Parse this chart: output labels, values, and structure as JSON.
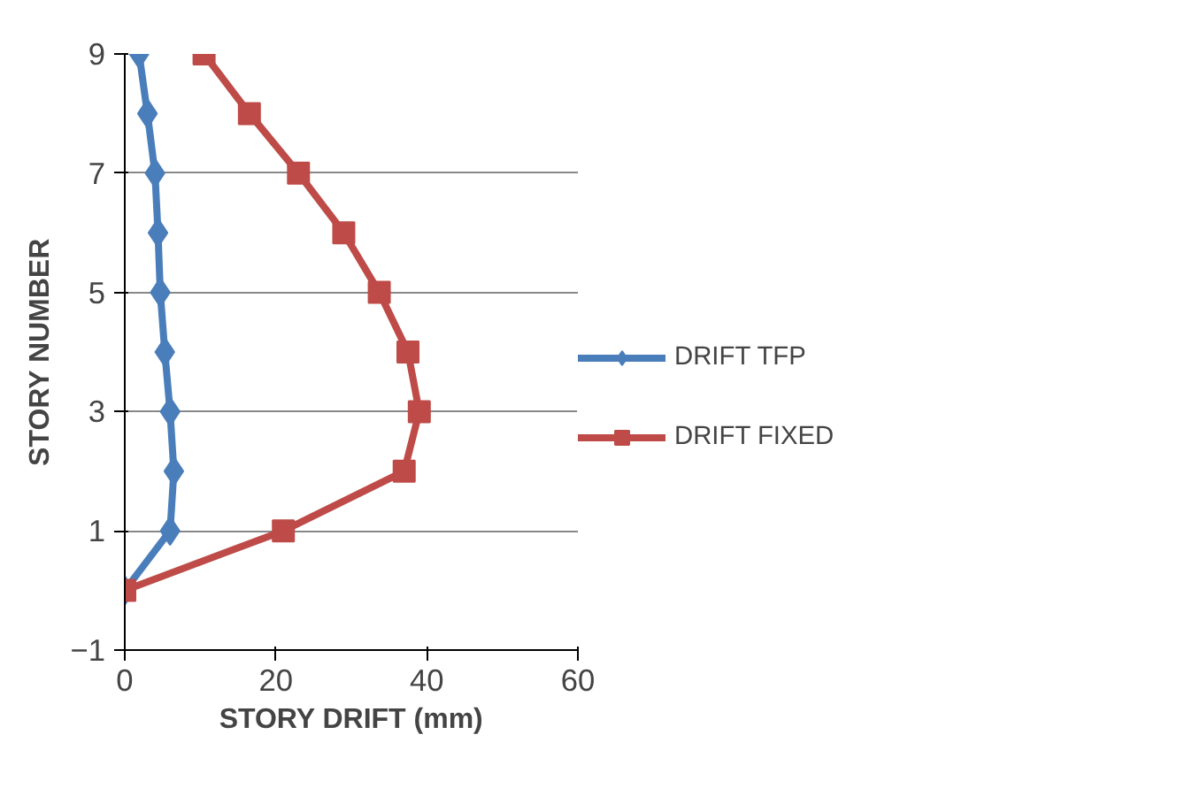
{
  "chart_data": {
    "type": "line",
    "xlabel": "STORY DRIFT (mm)",
    "ylabel": "STORY NUMBER",
    "xlim": [
      0,
      60
    ],
    "xticks": [
      0,
      20,
      40,
      60
    ],
    "ylim": [
      -1,
      9
    ],
    "yticks": [
      -1,
      1,
      3,
      5,
      7,
      9
    ],
    "grid": "y",
    "legend": "right",
    "series": [
      {
        "name": "DRIFT TFP",
        "color": "#4a7ebb",
        "marker": "diamond",
        "x": [
          0,
          6,
          6.5,
          6,
          5.3,
          4.7,
          4.4,
          4,
          3,
          1.9
        ],
        "values": [
          0,
          1,
          2,
          3,
          4,
          5,
          6,
          7,
          8,
          9
        ]
      },
      {
        "name": "DRIFT FIXED",
        "color": "#be4b48",
        "marker": "square",
        "x": [
          0,
          21,
          37,
          39,
          37.5,
          33.7,
          29,
          23,
          16.5,
          10.5
        ],
        "values": [
          0,
          1,
          2,
          3,
          4,
          5,
          6,
          7,
          8,
          9
        ]
      }
    ]
  }
}
